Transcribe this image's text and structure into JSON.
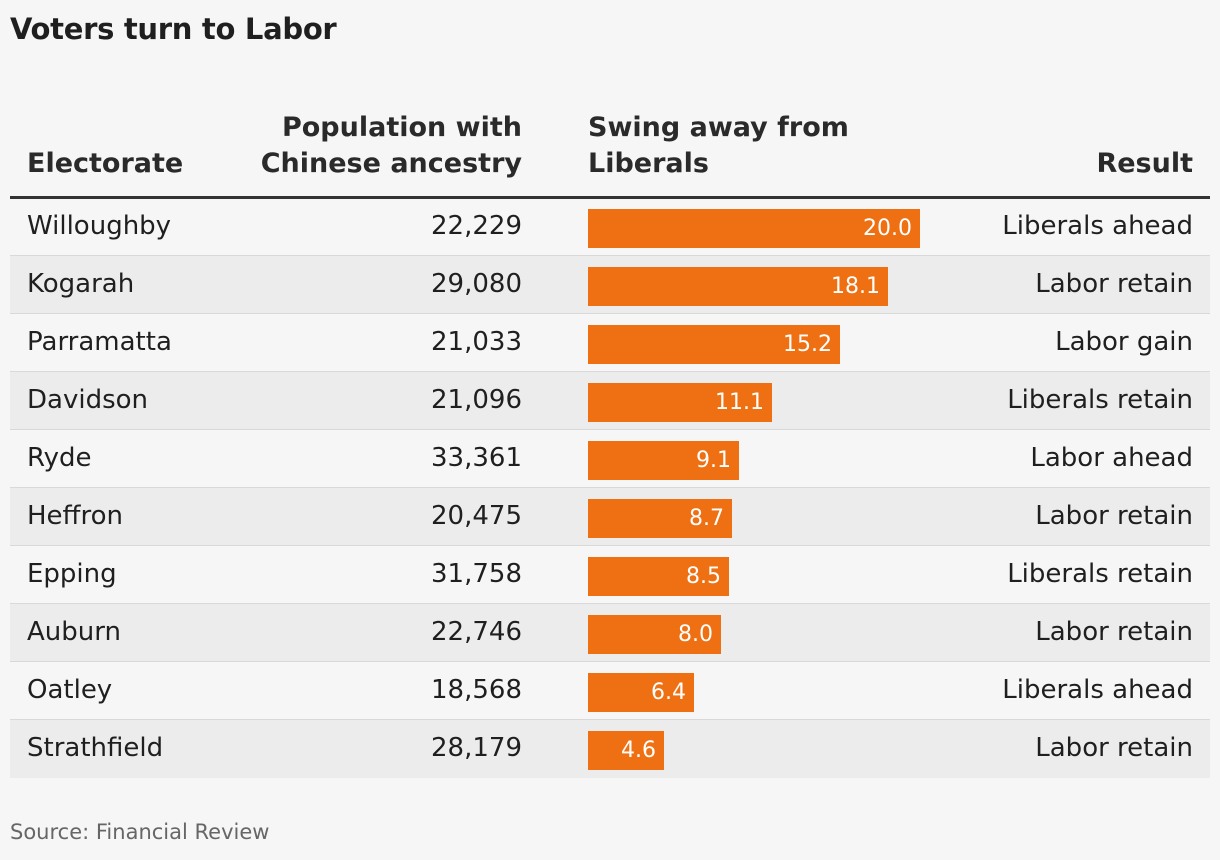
{
  "title": "Voters turn to Labor",
  "headers": {
    "electorate": "Electorate",
    "population_line1": "Population with",
    "population_line2": "Chinese ancestry",
    "swing_line1": "Swing away from",
    "swing_line2": "Liberals",
    "result": "Result"
  },
  "colors": {
    "bar": "#ee7012",
    "bar_label": "#ffffff"
  },
  "chart_data": {
    "type": "table",
    "columns": [
      "Electorate",
      "Population with Chinese ancestry",
      "Swing away from Liberals",
      "Result"
    ],
    "xlim": [
      0,
      20
    ],
    "rows": [
      {
        "electorate": "Willoughby",
        "population": "22,229",
        "swing": 20.0,
        "swing_label": "20.0",
        "result": "Liberals ahead"
      },
      {
        "electorate": "Kogarah",
        "population": "29,080",
        "swing": 18.1,
        "swing_label": "18.1",
        "result": "Labor retain"
      },
      {
        "electorate": "Parramatta",
        "population": "21,033",
        "swing": 15.2,
        "swing_label": "15.2",
        "result": "Labor gain"
      },
      {
        "electorate": "Davidson",
        "population": "21,096",
        "swing": 11.1,
        "swing_label": "11.1",
        "result": "Liberals retain"
      },
      {
        "electorate": "Ryde",
        "population": "33,361",
        "swing": 9.1,
        "swing_label": "9.1",
        "result": "Labor ahead"
      },
      {
        "electorate": "Heffron",
        "population": "20,475",
        "swing": 8.7,
        "swing_label": "8.7",
        "result": "Labor retain"
      },
      {
        "electorate": "Epping",
        "population": "31,758",
        "swing": 8.5,
        "swing_label": "8.5",
        "result": "Liberals retain"
      },
      {
        "electorate": "Auburn",
        "population": "22,746",
        "swing": 8.0,
        "swing_label": "8.0",
        "result": "Labor retain"
      },
      {
        "electorate": "Oatley",
        "population": "18,568",
        "swing": 6.4,
        "swing_label": "6.4",
        "result": "Liberals ahead"
      },
      {
        "electorate": "Strathfield",
        "population": "28,179",
        "swing": 4.6,
        "swing_label": "4.6",
        "result": "Labor retain"
      }
    ]
  },
  "source": "Source: Financial Review"
}
